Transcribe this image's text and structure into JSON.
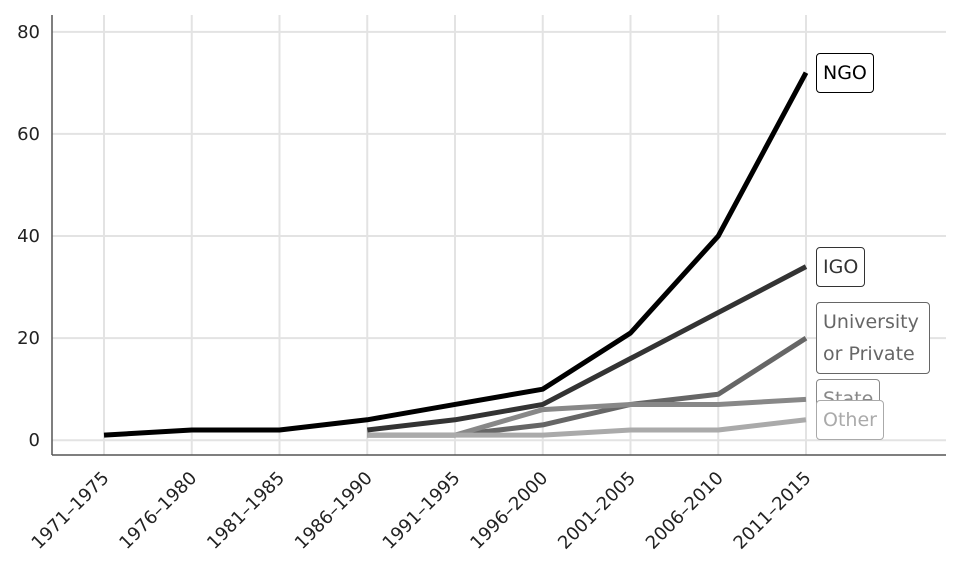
{
  "chart_data": {
    "type": "line",
    "categories": [
      "1971–1975",
      "1976–1980",
      "1981–1985",
      "1986–1990",
      "1991–1995",
      "1996–2000",
      "2001–2005",
      "2006–2010",
      "2011–2015"
    ],
    "series": [
      {
        "name": "NGO",
        "color": "#000000",
        "values": [
          1,
          2,
          2,
          4,
          7,
          10,
          21,
          40,
          72
        ]
      },
      {
        "name": "IGO",
        "color": "#333333",
        "values": [
          null,
          null,
          null,
          2,
          4,
          7,
          16,
          25,
          34
        ]
      },
      {
        "name": "University or Private",
        "color": "#666666",
        "values": [
          null,
          null,
          null,
          1,
          1,
          3,
          7,
          9,
          20
        ]
      },
      {
        "name": "State",
        "color": "#888888",
        "values": [
          null,
          null,
          null,
          1,
          1,
          6,
          7,
          7,
          8
        ]
      },
      {
        "name": "Other",
        "color": "#aaaaaa",
        "values": [
          null,
          null,
          null,
          1,
          1,
          1,
          2,
          2,
          4
        ]
      }
    ],
    "ylim": [
      -2.9,
      83.3
    ],
    "yticks": [
      0,
      20,
      40,
      60,
      80
    ],
    "grid": true
  }
}
